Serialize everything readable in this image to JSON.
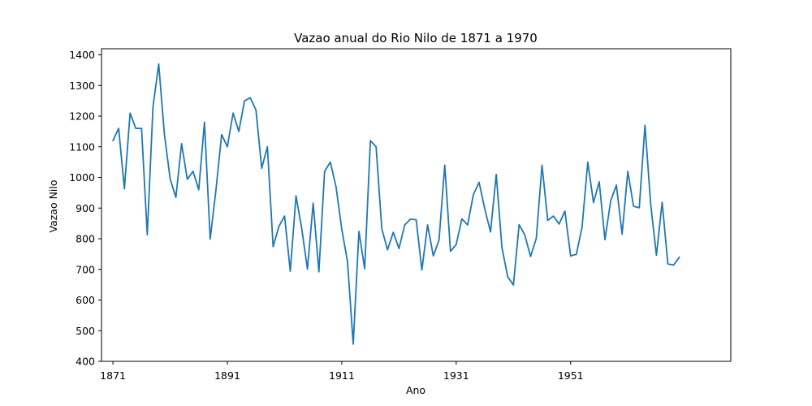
{
  "chart_data": {
    "type": "line",
    "title": "Vazao anual do Rio Nilo de 1871 a 1970",
    "xlabel": "Ano",
    "ylabel": "Vazao Nilo",
    "xlim": [
      1869,
      1979
    ],
    "ylim": [
      400,
      1420
    ],
    "x_ticks": [
      1871,
      1891,
      1911,
      1931,
      1951
    ],
    "y_ticks": [
      400,
      500,
      600,
      700,
      800,
      900,
      1000,
      1100,
      1200,
      1300,
      1400
    ],
    "grid": false,
    "line_color": "#1f77b4",
    "series": [
      {
        "x": [
          1871,
          1872,
          1873,
          1874,
          1875,
          1876,
          1877,
          1878,
          1879,
          1880,
          1881,
          1882,
          1883,
          1884,
          1885,
          1886,
          1887,
          1888,
          1889,
          1890,
          1891,
          1892,
          1893,
          1894,
          1895,
          1896,
          1897,
          1898,
          1899,
          1900,
          1901,
          1902,
          1903,
          1904,
          1905,
          1906,
          1907,
          1908,
          1909,
          1910,
          1911,
          1912,
          1913,
          1914,
          1915,
          1916,
          1917,
          1918,
          1919,
          1920,
          1921,
          1922,
          1923,
          1924,
          1925,
          1926,
          1927,
          1928,
          1929,
          1930,
          1931,
          1932,
          1933,
          1934,
          1935,
          1936,
          1937,
          1938,
          1939,
          1940,
          1941,
          1942,
          1943,
          1944,
          1945,
          1946,
          1947,
          1948,
          1949,
          1950,
          1951,
          1952,
          1953,
          1954,
          1955,
          1956,
          1957,
          1958,
          1959,
          1960,
          1961,
          1962,
          1963,
          1964,
          1965,
          1966,
          1967,
          1968,
          1969,
          1970
        ],
        "values": [
          1120,
          1160,
          963,
          1210,
          1160,
          1160,
          813,
          1230,
          1370,
          1140,
          995,
          935,
          1110,
          994,
          1020,
          960,
          1180,
          799,
          958,
          1140,
          1100,
          1210,
          1150,
          1250,
          1260,
          1220,
          1030,
          1100,
          774,
          840,
          874,
          694,
          940,
          833,
          701,
          916,
          692,
          1020,
          1050,
          969,
          831,
          726,
          456,
          824,
          702,
          1120,
          1100,
          832,
          764,
          821,
          768,
          845,
          864,
          862,
          698,
          845,
          744,
          796,
          1040,
          759,
          781,
          865,
          845,
          944,
          984,
          897,
          822,
          1010,
          771,
          676,
          649,
          846,
          812,
          742,
          801,
          1040,
          860,
          874,
          848,
          890,
          744,
          749,
          838,
          1050,
          918,
          986,
          797,
          923,
          975,
          815,
          1020,
          906,
          901,
          1170,
          912,
          746,
          919,
          718,
          714,
          740
        ]
      }
    ]
  }
}
